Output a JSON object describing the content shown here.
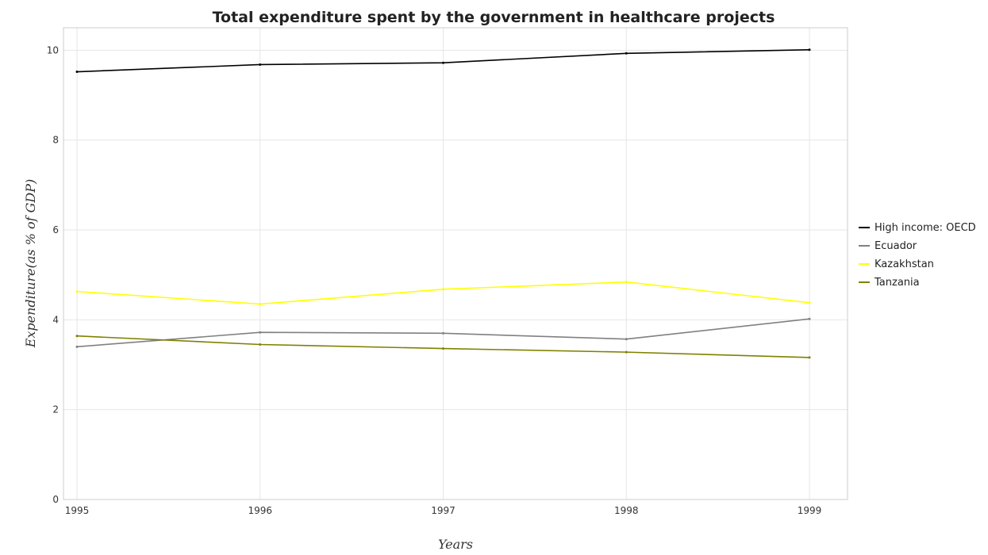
{
  "chart_data": {
    "type": "line",
    "title": "Total expenditure spent by the government in healthcare projects",
    "xlabel": "Years",
    "ylabel": "Expenditure(as % of GDP)",
    "x": [
      "1995",
      "1996",
      "1997",
      "1998",
      "1999"
    ],
    "ylim": [
      0,
      10.5
    ],
    "yticks": [
      "0",
      "2",
      "4",
      "6",
      "8",
      "10"
    ],
    "grid": true,
    "legend_position": "right",
    "series": [
      {
        "name": "High income: OECD",
        "color": "#000000",
        "values": [
          9.52,
          9.68,
          9.72,
          9.93,
          10.01
        ]
      },
      {
        "name": "Ecuador",
        "color": "#808080",
        "values": [
          3.4,
          3.72,
          3.7,
          3.57,
          4.02
        ]
      },
      {
        "name": "Kazakhstan",
        "color": "#ffff00",
        "values": [
          4.63,
          4.35,
          4.68,
          4.84,
          4.38
        ]
      },
      {
        "name": "Tanzania",
        "color": "#808000",
        "values": [
          3.64,
          3.45,
          3.36,
          3.28,
          3.16
        ]
      }
    ]
  }
}
